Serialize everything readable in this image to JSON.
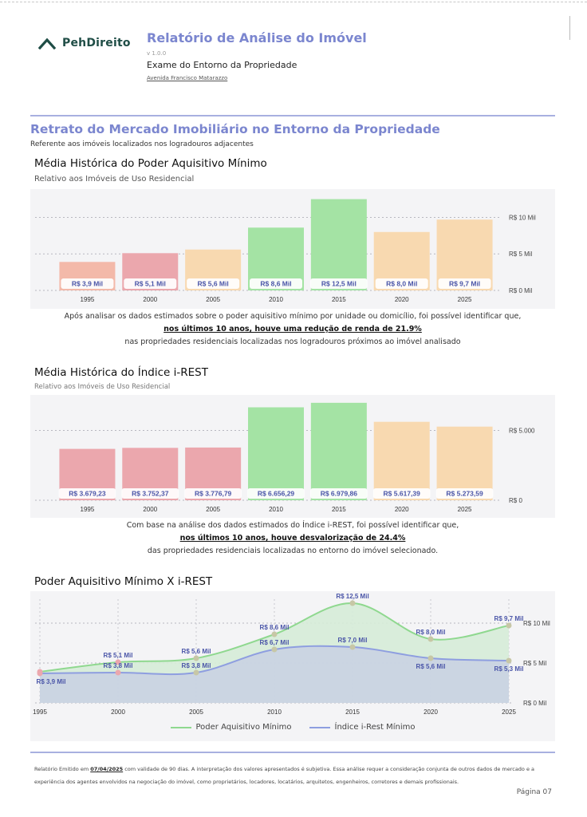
{
  "brand": {
    "name": "PehDireito"
  },
  "header": {
    "title": "Relatório de Análise do Imóvel",
    "version": "v 1.0.0",
    "subtitle": "Exame do Entorno da Propriedade",
    "address": "Avenida Francisco Matarazzo"
  },
  "section": {
    "title": "Retrato do Mercado Imobiliário no Entorno da Propriedade",
    "subtitle": "Referente aos imóveis localizados nos logradouros adjacentes"
  },
  "chart1_text": {
    "title": "Média Histórica do Poder Aquisitivo Mínimo",
    "subtitle": "Relativo aos Imóveis de Uso Residencial",
    "note_line1": "Após analisar os dados estimados sobre o poder aquisitivo mínimo por unidade ou domicílio, foi possível identificar que,",
    "note_line2": "nos últimos 10 anos, houve uma redução de renda de 21.9%",
    "note_line3": "nas propriedades residenciais localizadas nos logradouros próximos ao imóvel analisado"
  },
  "chart2_text": {
    "title": "Média Histórica do Índice i-REST",
    "subtitle": "Relativo aos Imóveis de Uso Residencial",
    "note_line1": "Com base na análise dos dados estimados do Índice i-REST, foi possível identificar que,",
    "note_line2": "nos últimos 10 anos, houve desvalorização de 24.4%",
    "note_line3": "das propriedades residenciais localizadas no entorno do imóvel selecionado."
  },
  "chart3_text": {
    "title": "Poder Aquisitivo Mínimo X i-REST"
  },
  "footer": {
    "text_a": "Relatório Emitido em ",
    "date": "07/04/2025",
    "text_b": " com validade de 90 dias. A interpretação dos valores apresentados é subjetiva. Essa análise requer a consideração conjunta de outros dados de mercado e a experiência dos agentes envolvidos na negociação do imóvel, como proprietários, locadores, locatários, arquitetos, engenheiros, corretores e demais profissionais.",
    "page": "Página 07"
  },
  "colors": {
    "accent": "#7b86cf",
    "brand": "#1f4d46",
    "green_line": "#8fd88f",
    "blue_line": "#8e9ee0"
  },
  "chart_data": [
    {
      "type": "bar",
      "categories": [
        "1995",
        "2000",
        "2005",
        "2010",
        "2015",
        "2020",
        "2025"
      ],
      "values": [
        3.9,
        5.1,
        5.6,
        8.6,
        12.5,
        8.0,
        9.7
      ],
      "data_labels": [
        "R$ 3,9 Mil",
        "R$ 5,1 Mil",
        "R$ 5,6 Mil",
        "R$ 8,6 Mil",
        "R$ 12,5 Mil",
        "R$ 8,0 Mil",
        "R$ 9,7 Mil"
      ],
      "bar_colors": [
        "#f3b9a9",
        "#eba7ad",
        "#f8d9b0",
        "#a4e3a4",
        "#a4e3a4",
        "#f8d9b0",
        "#f8d9b0"
      ],
      "yticks": [
        0,
        5,
        10
      ],
      "ytick_labels": [
        "R$ 0 Mil",
        "R$ 5 Mil",
        "R$ 10 Mil"
      ],
      "ylim": [
        0,
        13
      ],
      "grid": true,
      "title": "Média Histórica do Poder Aquisitivo Mínimo"
    },
    {
      "type": "bar",
      "categories": [
        "1995",
        "2000",
        "2005",
        "2010",
        "2015",
        "2020",
        "2025"
      ],
      "values": [
        3679.23,
        3752.37,
        3776.79,
        6656.29,
        6979.86,
        5617.39,
        5273.59
      ],
      "data_labels": [
        "R$ 3.679,23",
        "R$ 3.752,37",
        "R$ 3.776,79",
        "R$ 6.656,29",
        "R$ 6.979,86",
        "R$ 5.617,39",
        "R$ 5.273,59"
      ],
      "bar_colors": [
        "#eba7ad",
        "#eba7ad",
        "#eba7ad",
        "#a4e3a4",
        "#a4e3a4",
        "#f8d9b0",
        "#f8d9b0"
      ],
      "yticks": [
        0,
        5000
      ],
      "ytick_labels": [
        "R$ 0",
        "R$ 5.000"
      ],
      "ylim": [
        0,
        7200
      ],
      "grid": true,
      "title": "Média Histórica do Índice i-REST"
    },
    {
      "type": "area",
      "x": [
        "1995",
        "2000",
        "2005",
        "2010",
        "2015",
        "2020",
        "2025"
      ],
      "series": [
        {
          "name": "Poder Aquisitivo Mínimo",
          "values": [
            3.9,
            5.1,
            5.6,
            8.6,
            12.5,
            8.0,
            9.7
          ],
          "labels": [
            "R$ 3,9 Mil",
            "R$ 5,1 Mil",
            "R$ 5,6 Mil",
            "R$ 8,6 Mil",
            "R$ 12,5 Mil",
            "R$ 8,0 Mil",
            "R$ 9,7 Mil"
          ],
          "color": "#8fd88f"
        },
        {
          "name": "Índice i-Rest Mínimo",
          "values": [
            3.7,
            3.8,
            3.8,
            6.7,
            7.0,
            5.6,
            5.3
          ],
          "labels": [
            "",
            "R$ 3,8 Mil",
            "R$ 3,8 Mil",
            "R$ 6,7 Mil",
            "R$ 7,0 Mil",
            "R$ 5,6 Mil",
            "R$ 5,3 Mil"
          ],
          "color": "#8e9ee0"
        }
      ],
      "yticks": [
        0,
        5,
        10
      ],
      "ytick_labels": [
        "R$ 0 Mil",
        "R$ 5 Mil",
        "R$ 10 Mil"
      ],
      "ylim": [
        0,
        13
      ],
      "grid": true,
      "legend": "bottom-center",
      "title": "Poder Aquisitivo Mínimo X i-REST"
    }
  ]
}
